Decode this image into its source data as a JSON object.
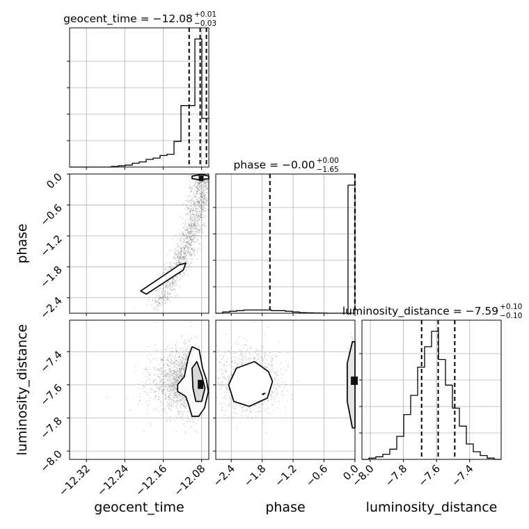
{
  "chart_data": {
    "type": "corner",
    "parameters": [
      "geocent_time",
      "phase",
      "luminosity_distance"
    ],
    "titles": [
      {
        "param": "geocent_time",
        "text": "geocent_time = −12.08",
        "plus": "+0.01",
        "minus": "−0.03"
      },
      {
        "param": "phase",
        "text": "phase = −0.00",
        "plus": "+0.00",
        "minus": "−1.65"
      },
      {
        "param": "luminosity_distance",
        "text": "luminosity_distance = −7.59",
        "plus": "+0.10",
        "minus": "−0.10"
      }
    ],
    "ranges": {
      "geocent_time": [
        -12.355,
        -12.065
      ],
      "phase": [
        -2.7,
        0.0
      ],
      "luminosity_distance": [
        -8.05,
        -7.21
      ]
    },
    "ticks": {
      "geocent_time": {
        "values": [
          -12.32,
          -12.24,
          -12.16,
          -12.08
        ],
        "labels": [
          "−12.32",
          "−12.24",
          "−12.16",
          "−12.08"
        ]
      },
      "phase": {
        "values": [
          -2.4,
          -1.8,
          -1.2,
          -0.6,
          0.0
        ],
        "labels": [
          "−2.4",
          "−1.8",
          "−1.2",
          "−0.6",
          "0.0"
        ]
      },
      "luminosity_distance": {
        "values": [
          -8.0,
          -7.8,
          -7.6,
          -7.4
        ],
        "labels": [
          "−8.0",
          "−7.8",
          "−7.6",
          "−7.4"
        ]
      }
    },
    "quantiles": {
      "geocent_time": [
        -12.106,
        -12.083,
        -12.07
      ],
      "phase": [
        -1.65,
        -0.003,
        0.0
      ],
      "luminosity_distance": [
        -7.69,
        -7.59,
        -7.49
      ]
    },
    "histograms": {
      "geocent_time": {
        "edges": [
          -12.355,
          -12.3405,
          -12.326,
          -12.3115,
          -12.297,
          -12.2825,
          -12.268,
          -12.2535,
          -12.239,
          -12.2245,
          -12.21,
          -12.1955,
          -12.181,
          -12.1665,
          -12.152,
          -12.1375,
          -12.123,
          -12.1085,
          -12.094,
          -12.0795,
          -12.065
        ],
        "counts": [
          0,
          0,
          0,
          0,
          0,
          0,
          0.5,
          1,
          1.5,
          3,
          4,
          6,
          7,
          9,
          10,
          20,
          48,
          48,
          100,
          38
        ]
      },
      "phase": {
        "edges": [
          -2.7,
          -2.565,
          -2.43,
          -2.295,
          -2.16,
          -2.025,
          -1.89,
          -1.755,
          -1.62,
          -1.485,
          -1.35,
          -1.215,
          -1.08,
          -0.945,
          -0.81,
          -0.675,
          -0.54,
          -0.405,
          -0.27,
          -0.135,
          0.0
        ],
        "counts": [
          0,
          1,
          1.5,
          2,
          2.5,
          2.5,
          2.5,
          2.5,
          2,
          2,
          1.5,
          1,
          0.5,
          0.3,
          0.2,
          0.1,
          0,
          0,
          0,
          100
        ]
      },
      "luminosity_distance": {
        "edges": [
          -8.05,
          -8.008,
          -7.966,
          -7.924,
          -7.882,
          -7.84,
          -7.798,
          -7.756,
          -7.714,
          -7.672,
          -7.63,
          -7.588,
          -7.546,
          -7.504,
          -7.462,
          -7.42,
          -7.378,
          -7.336,
          -7.294,
          -7.252,
          -7.21
        ],
        "counts": [
          0,
          1,
          2,
          4,
          8,
          18,
          35,
          50,
          72,
          88,
          100,
          78,
          58,
          40,
          26,
          12,
          6,
          3,
          1,
          0
        ]
      }
    },
    "grid": true
  }
}
